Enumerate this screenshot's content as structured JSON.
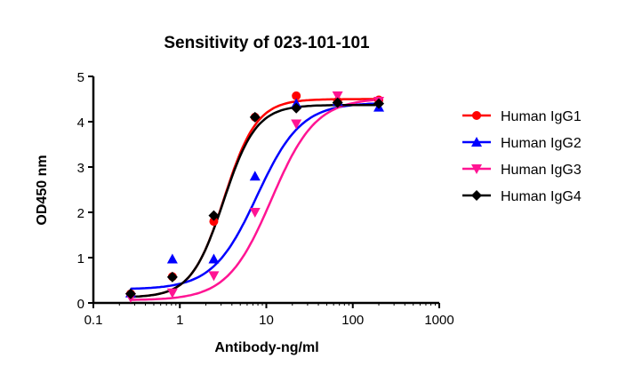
{
  "chart_data": {
    "type": "scatter",
    "title": "Sensitivity of 023-101-101",
    "xlabel": "Antibody-ng/ml",
    "ylabel": "OD450 nm",
    "xscale": "log",
    "xlim": [
      0.1,
      1000
    ],
    "ylim": [
      0,
      5
    ],
    "xticks": [
      "0.1",
      "1",
      "10",
      "100",
      "1000"
    ],
    "yticks": [
      "0",
      "1",
      "2",
      "3",
      "4",
      "5"
    ],
    "grid": false,
    "legend_position": "right",
    "x": [
      0.27,
      0.82,
      2.47,
      7.4,
      22.2,
      66.7,
      200
    ],
    "series": [
      {
        "name": "Human IgG1",
        "color": "#ff0000",
        "marker": "circle",
        "values": [
          0.2,
          0.58,
          1.8,
          4.1,
          4.57,
          4.45,
          4.48
        ]
      },
      {
        "name": "Human IgG2",
        "color": "#0000ff",
        "marker": "triangle-up",
        "values": [
          0.22,
          0.97,
          0.97,
          2.8,
          4.4,
          4.45,
          4.32
        ]
      },
      {
        "name": "Human IgG3",
        "color": "#ff1493",
        "marker": "triangle-down",
        "values": [
          0.12,
          0.22,
          0.6,
          2.0,
          3.95,
          4.57,
          4.45
        ]
      },
      {
        "name": "Human IgG4",
        "color": "#000000",
        "marker": "diamond",
        "values": [
          0.2,
          0.57,
          1.93,
          4.1,
          4.3,
          4.42,
          4.4
        ]
      }
    ]
  }
}
